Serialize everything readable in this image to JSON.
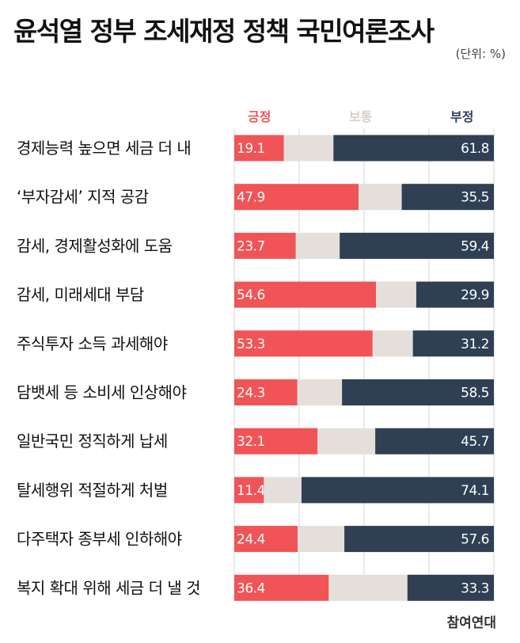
{
  "title": "윤석열 정부 조세재정 정책 국민여론조사",
  "unit": "(단위: %)",
  "source": "참여연대",
  "colors": {
    "positive": "#f05457",
    "neutral": "#e5dfdb",
    "negative": "#2f3f54",
    "neutral_legend": "#d9cfc8",
    "grid": "#d4d4d4"
  },
  "chart_data": {
    "type": "bar",
    "stacked": true,
    "orientation": "horizontal",
    "normalized_to": 100,
    "legend_position": "top",
    "categories": [
      "경제능력 높으면 세금 더 내",
      "‘부자감세’ 지적 공감",
      "감세, 경제활성화에 도움",
      "감세, 미래세대 부담",
      "주식투자 소득 과세해야",
      "담뱃세 등 소비세 인상해야",
      "일반국민 정직하게 납세",
      "탈세행위 적절하게 처벌",
      "다주택자 종부세 인하해야",
      "복지 확대 위해 세금 더 낼 것"
    ],
    "series": [
      {
        "name": "긍정",
        "values": [
          19.1,
          47.9,
          23.7,
          54.6,
          53.3,
          24.3,
          32.1,
          11.4,
          24.4,
          36.4
        ]
      },
      {
        "name": "보통",
        "values": [
          null,
          null,
          null,
          null,
          null,
          null,
          null,
          null,
          null,
          null
        ]
      },
      {
        "name": "부정",
        "values": [
          61.8,
          35.5,
          59.4,
          29.9,
          31.2,
          58.5,
          45.7,
          74.1,
          57.6,
          33.3
        ]
      }
    ]
  }
}
